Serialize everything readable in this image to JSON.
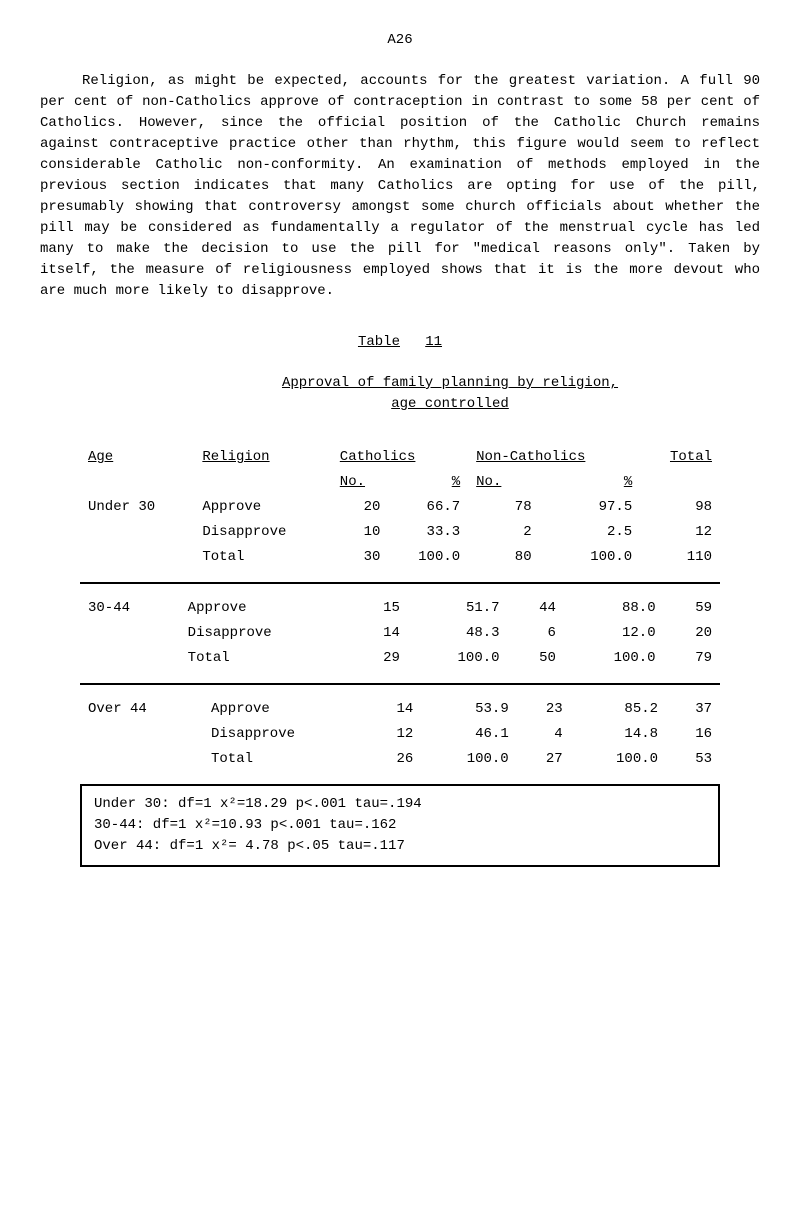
{
  "page_number": "A26",
  "paragraph": "Religion, as might be expected, accounts for the greatest variation. A full 90 per cent of non-Catholics approve of contraception in contrast to some 58 per cent of Catholics. However, since the official position of the Catholic Church remains against contraceptive practice other than rhythm, this figure would seem to reflect considerable Catholic non-conformity. An examination of methods employed in the previous section indicates that many Catholics are opting for use of the pill, presumably showing that controversy amongst some church officials about whether the pill may be considered as fundamentally a regulator of the menstrual cycle has led many to make the decision to use the pill for \"medical reasons only\". Taken by itself, the measure of religiousness employed shows that it is the more devout who are much more likely to disapprove.",
  "table_label_1": "Table",
  "table_label_2": "11",
  "table_title_1": "Approval of family planning by religion,",
  "table_title_2": "age controlled",
  "headers": {
    "age": "Age",
    "religion": "Religion",
    "catholics": "Catholics",
    "noncatholics": "Non-Catholics",
    "total": "Total",
    "no": "No.",
    "pct": "%"
  },
  "groups": [
    {
      "age": "Under 30",
      "rows": [
        {
          "rel": "Approve",
          "cn": "20",
          "cp": "66.7",
          "nn": "78",
          "np": "97.5",
          "t": "98"
        },
        {
          "rel": "Disapprove",
          "cn": "10",
          "cp": "33.3",
          "nn": "2",
          "np": "2.5",
          "t": "12"
        },
        {
          "rel": "Total",
          "cn": "30",
          "cp": "100.0",
          "nn": "80",
          "np": "100.0",
          "t": "110"
        }
      ]
    },
    {
      "age": "30-44",
      "rows": [
        {
          "rel": "Approve",
          "cn": "15",
          "cp": "51.7",
          "nn": "44",
          "np": "88.0",
          "t": "59"
        },
        {
          "rel": "Disapprove",
          "cn": "14",
          "cp": "48.3",
          "nn": "6",
          "np": "12.0",
          "t": "20"
        },
        {
          "rel": "Total",
          "cn": "29",
          "cp": "100.0",
          "nn": "50",
          "np": "100.0",
          "t": "79"
        }
      ]
    },
    {
      "age": "Over 44",
      "rows": [
        {
          "rel": "Approve",
          "cn": "14",
          "cp": "53.9",
          "nn": "23",
          "np": "85.2",
          "t": "37"
        },
        {
          "rel": "Disapprove",
          "cn": "12",
          "cp": "46.1",
          "nn": "4",
          "np": "14.8",
          "t": "16"
        },
        {
          "rel": "Total",
          "cn": "26",
          "cp": "100.0",
          "nn": "27",
          "np": "100.0",
          "t": "53"
        }
      ]
    }
  ],
  "stats": [
    "Under 30:  df=1  x²=18.29  p<.001 tau=.194",
    "   30-44:  df=1  x²=10.93  p<.001 tau=.162",
    " Over 44:  df=1  x²= 4.78  p<.05  tau=.117"
  ]
}
